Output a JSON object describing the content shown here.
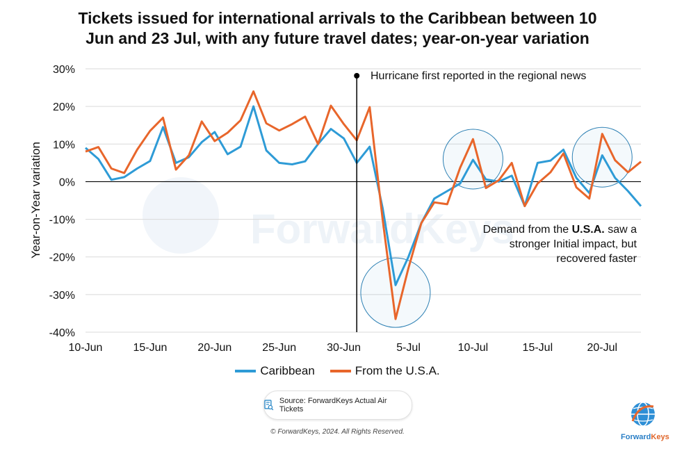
{
  "title_lines": [
    "Tickets issued for international arrivals to the Caribbean between 10",
    "Jun and 23 Jul, with any future travel dates; year-on-year variation"
  ],
  "annotations": {
    "hurricane": "Hurricane first reported in the regional news",
    "demand_prefix": "Demand from the ",
    "demand_bold": "U.S.A.",
    "demand_suffix": " saw a",
    "demand_line2": "stronger Initial impact, but",
    "demand_line3": "recovered faster"
  },
  "legend": {
    "series1": "Caribbean",
    "series2": "From the U.S.A."
  },
  "source": "Source: ForwardKeys Actual Air Tickets",
  "copyright": "© ForwardKeys, 2024. All Rights Reserved.",
  "logo": {
    "part1": "Forward",
    "part2": "Keys"
  },
  "watermark": "ForwardKeys",
  "colors": {
    "caribbean": "#2e9bd6",
    "usa": "#e8662b",
    "circle": "#2b7fb3",
    "axis": "#000000",
    "grid": "#d9d9d9"
  },
  "chart_data": {
    "type": "line",
    "title": "Tickets issued for international arrivals to the Caribbean between 10 Jun and 23 Jul, with any future travel dates; year-on-year variation",
    "xlabel": "",
    "ylabel": "Year-on-Year variation",
    "ylim": [
      -40,
      30
    ],
    "y_ticks": [
      30,
      20,
      10,
      0,
      -10,
      -20,
      -30,
      -40
    ],
    "y_tick_labels": [
      "30%",
      "20%",
      "10%",
      "0%",
      "-10%",
      "-20%",
      "-30%",
      "-40%"
    ],
    "x": [
      "10-Jun",
      "11-Jun",
      "12-Jun",
      "13-Jun",
      "14-Jun",
      "15-Jun",
      "16-Jun",
      "17-Jun",
      "18-Jun",
      "19-Jun",
      "20-Jun",
      "21-Jun",
      "22-Jun",
      "23-Jun",
      "24-Jun",
      "25-Jun",
      "26-Jun",
      "27-Jun",
      "28-Jun",
      "29-Jun",
      "30-Jun",
      "1-Jul",
      "2-Jul",
      "3-Jul",
      "4-Jul",
      "5-Jul",
      "6-Jul",
      "7-Jul",
      "8-Jul",
      "9-Jul",
      "10-Jul",
      "11-Jul",
      "12-Jul",
      "13-Jul",
      "14-Jul",
      "15-Jul",
      "16-Jul",
      "17-Jul",
      "18-Jul",
      "19-Jul",
      "20-Jul",
      "21-Jul",
      "22-Jul",
      "23-Jul"
    ],
    "x_tick_labels": [
      {
        "index": 0,
        "label": "10-Jun"
      },
      {
        "index": 5,
        "label": "15-Jun"
      },
      {
        "index": 10,
        "label": "20-Jun"
      },
      {
        "index": 15,
        "label": "25-Jun"
      },
      {
        "index": 20,
        "label": "30-Jun"
      },
      {
        "index": 25,
        "label": "5-Jul"
      },
      {
        "index": 30,
        "label": "10-Jul"
      },
      {
        "index": 35,
        "label": "15-Jul"
      },
      {
        "index": 40,
        "label": "20-Jul"
      }
    ],
    "series": [
      {
        "name": "Caribbean",
        "values": [
          9,
          6,
          0.5,
          1.2,
          3.5,
          5.5,
          14.5,
          5,
          6.5,
          10.5,
          13.2,
          7.3,
          9.3,
          20,
          8.3,
          5,
          4.6,
          5.4,
          10,
          14,
          11.5,
          5,
          9.3,
          -7,
          -27.5,
          -20,
          -11,
          -4.5,
          -2.5,
          -0.5,
          5.8,
          0.6,
          0,
          1.6,
          -6.5,
          5,
          5.6,
          8.5,
          1,
          -3,
          7,
          1,
          -2.5,
          -6.5
        ]
      },
      {
        "name": "From the U.S.A.",
        "values": [
          8,
          9.2,
          3.5,
          2.3,
          8.5,
          13.5,
          17,
          3.2,
          7,
          16,
          10.8,
          13,
          16.3,
          24,
          15.5,
          13.6,
          15.3,
          17.3,
          10,
          20.2,
          15.3,
          11,
          19.8,
          -10,
          -36.5,
          -23,
          -11,
          -5.5,
          -6,
          3.7,
          11.3,
          -1.7,
          0.4,
          5,
          -6.5,
          -0.5,
          2.5,
          7.5,
          -1.5,
          -4.5,
          12.7,
          5.7,
          2.5,
          5.3
        ]
      }
    ],
    "event_marker_index": 21,
    "highlight_circles": [
      {
        "center_index": 24,
        "center_value": -29.5,
        "label": "dip"
      },
      {
        "center_index": 30,
        "center_value": 6,
        "label": "10-Jul peak"
      },
      {
        "center_index": 40,
        "center_value": 6.5,
        "label": "20-Jul peak"
      }
    ],
    "grid": true,
    "legend_position": "bottom"
  }
}
